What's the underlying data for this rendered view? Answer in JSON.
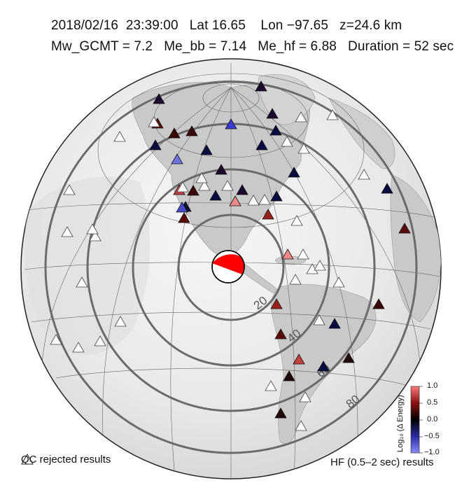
{
  "header": {
    "line1": "2018/02/16  23:39:00   Lat 16.65    Lon −97.65   z=24.6 km",
    "line2": "Mw_GCMT = 7.2   Me_bb = 7.14   Me_hf = 6.88   Duration = 52 sec"
  },
  "map": {
    "projection": "azimuthal equidistant",
    "center": {
      "lat": 16.65,
      "lon": -97.65
    },
    "distance_rings_deg": [
      20,
      40,
      60,
      80
    ],
    "ring_labels": [
      "20",
      "40",
      "60",
      "80"
    ],
    "beachball_colors": {
      "compressional": "#ff0000",
      "dilatational": "#ffffff"
    }
  },
  "colorbar": {
    "label": "Log₁₀ (Δ Energy)",
    "ticks": [
      "1.0",
      "0.5",
      "0.0",
      "−0.5",
      "−1.0"
    ],
    "range": [
      -1.0,
      1.0
    ]
  },
  "legend": {
    "qc_rejected": "QC rejected results",
    "hf_results": "HF (0.5–2 sec) results"
  },
  "stations": {
    "accepted_colors": [
      "#1a0a2e",
      "#5a0a0a",
      "#3a0808",
      "#0a0a40",
      "#7a1010",
      "#c24040",
      "#ef8888",
      "#3a3ad0",
      "#7070e0",
      "#4a4ac8",
      "#9a2020",
      "#200606",
      "#101030"
    ]
  }
}
